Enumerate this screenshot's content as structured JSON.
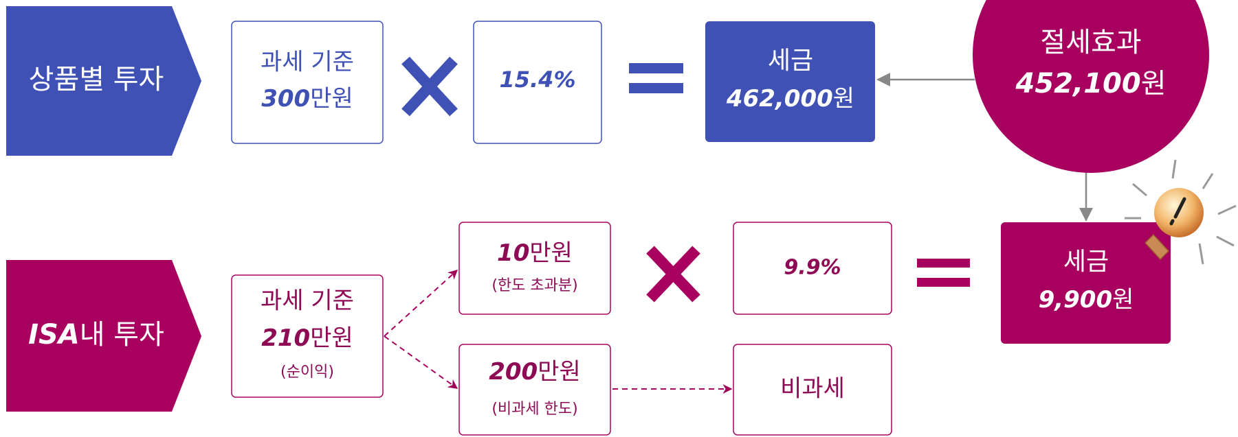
{
  "general": {
    "label": "상품별 투자",
    "base_label": "과세 기준",
    "base_amount": "300",
    "base_unit": "만원",
    "rate": "15.4%",
    "tax_label": "세금",
    "tax_amount": "462,000",
    "tax_unit": "원"
  },
  "saving": {
    "label": "절세효과",
    "amount": "452,100",
    "unit": "원"
  },
  "isa": {
    "label_bold": "ISA",
    "label_rest": "내 투자",
    "base_label": "과세 기준",
    "base_amount": "210",
    "base_unit": "만원",
    "base_note": "(순이익)",
    "excess_amount": "10",
    "excess_unit": "만원",
    "excess_note": "(한도 초과분)",
    "rate": "9.9%",
    "exempt_amount": "200",
    "exempt_unit": "만원",
    "exempt_note": "(비과세 한도)",
    "exempt_result": "비과세",
    "tax_label": "세금",
    "tax_amount": "9,900",
    "tax_unit": "원"
  }
}
